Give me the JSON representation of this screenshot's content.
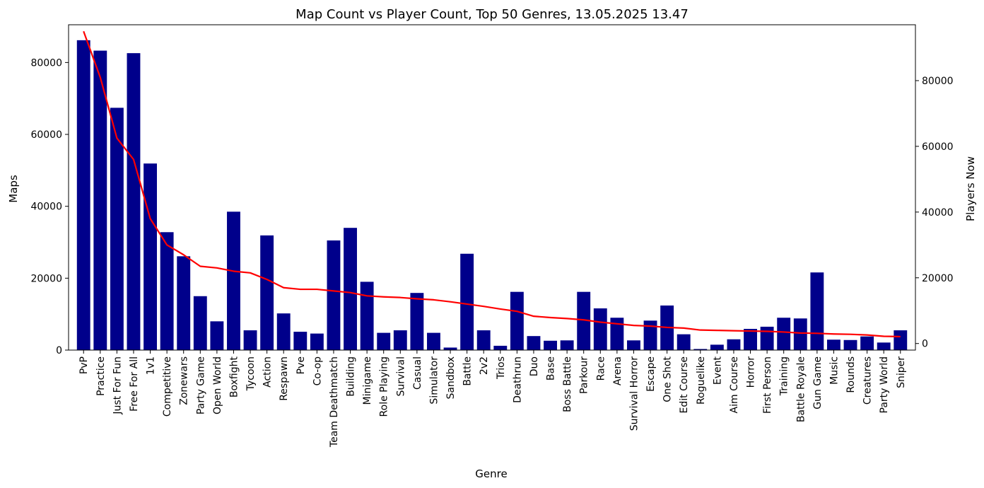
{
  "chart_data": {
    "type": "bar",
    "title": "Map Count vs Player Count, Top 50 Genres, 13.05.2025 13.47",
    "xlabel": "Genre",
    "ylabel": "Maps",
    "y2label": "Players Now",
    "ylim": [
      0,
      90500
    ],
    "y2lim": [
      -2000,
      97000
    ],
    "yticks": [
      0,
      20000,
      40000,
      60000,
      80000
    ],
    "y2ticks": [
      0,
      20000,
      40000,
      60000,
      80000
    ],
    "categories": [
      "PvP",
      "Practice",
      "Just For Fun",
      "Free For All",
      "1v1",
      "Competitive",
      "Zonewars",
      "Party Game",
      "Open World",
      "Boxfight",
      "Tycoon",
      "Action",
      "Respawn",
      "Pve",
      "Co-op",
      "Team Deathmatch",
      "Building",
      "Minigame",
      "Role Playing",
      "Survival",
      "Casual",
      "Simulator",
      "Sandbox",
      "Battle",
      "2v2",
      "Trios",
      "Deathrun",
      "Duo",
      "Base",
      "Boss Battle",
      "Parkour",
      "Race",
      "Arena",
      "Survival Horror",
      "Escape",
      "One Shot",
      "Edit Course",
      "Roguelike",
      "Event",
      "Aim Course",
      "Horror",
      "First Person",
      "Training",
      "Battle Royale",
      "Gun Game",
      "Music",
      "Rounds",
      "Creatures",
      "Party World",
      "Sniper"
    ],
    "series": [
      {
        "name": "Maps",
        "type": "bar",
        "color": "#00008b",
        "values": [
          86200,
          83300,
          67400,
          82600,
          51900,
          32800,
          26100,
          15000,
          8000,
          38500,
          5500,
          31900,
          10200,
          5100,
          4600,
          30500,
          34000,
          19000,
          4800,
          5500,
          15900,
          4800,
          700,
          26800,
          5500,
          1200,
          16200,
          3900,
          2600,
          2700,
          16200,
          11600,
          9000,
          2700,
          8200,
          12400,
          4400,
          300,
          1500,
          3000,
          5900,
          6500,
          9000,
          8800,
          21600,
          2900,
          2800,
          3800,
          2100,
          5500
        ]
      },
      {
        "name": "Players Now",
        "type": "line",
        "color": "#ff0000",
        "values": [
          95000,
          81000,
          62500,
          56000,
          38000,
          30000,
          27000,
          23500,
          23000,
          22000,
          21500,
          19500,
          17000,
          16500,
          16500,
          16000,
          15500,
          14500,
          14200,
          14000,
          13600,
          13300,
          12700,
          12000,
          11300,
          10500,
          9800,
          8300,
          7900,
          7600,
          7200,
          6500,
          6000,
          5500,
          5300,
          4900,
          4700,
          4100,
          4000,
          3900,
          3800,
          3700,
          3500,
          3200,
          3100,
          2900,
          2800,
          2600,
          2200,
          2100
        ]
      }
    ]
  }
}
